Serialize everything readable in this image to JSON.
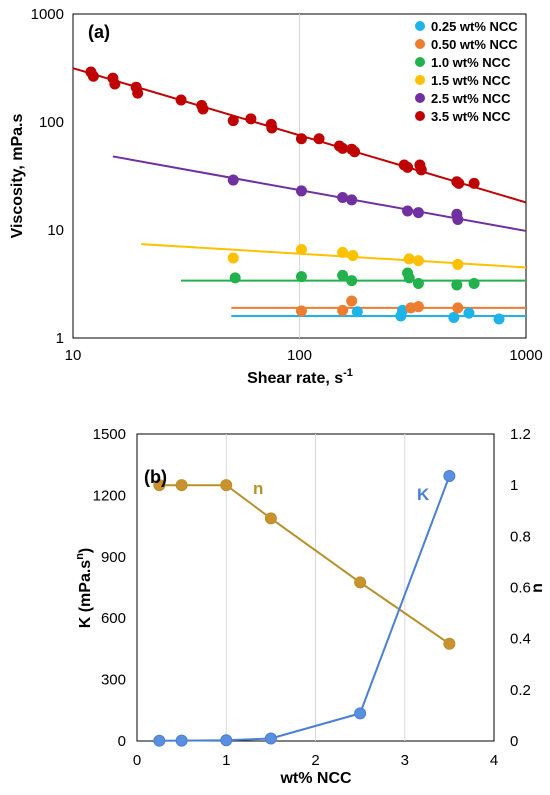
{
  "chart_data": [
    {
      "type": "scatter",
      "panel_label": "(a)",
      "xlabel": "Shear rate, s",
      "xlabel_sup": "-1",
      "ylabel": "Viscosity, mPa.s",
      "xscale": "log",
      "yscale": "log",
      "xlim": [
        10,
        1000
      ],
      "ylim": [
        1,
        1000
      ],
      "xticks": [
        "10",
        "100",
        "1000"
      ],
      "yticks": [
        "1",
        "10",
        "100",
        "1000"
      ],
      "grid": "vertical lines at decades",
      "legend_position": "top-right",
      "series": [
        {
          "name": "0.25 wt% NCC",
          "color": "#1fb4e8",
          "points": [
            [
              280,
              1.6
            ],
            [
              285,
              1.8
            ],
            [
              480,
              1.55
            ],
            [
              560,
              1.7
            ],
            [
              760,
              1.5
            ],
            [
              180,
              1.75
            ]
          ],
          "fit_line": [
            [
              50,
              1.6
            ],
            [
              1000,
              1.6
            ]
          ]
        },
        {
          "name": "0.50 wt% NCC",
          "color": "#ed7d31",
          "points": [
            [
              102,
              1.78
            ],
            [
              155,
              1.8
            ],
            [
              170,
              2.2
            ],
            [
              310,
              1.9
            ],
            [
              335,
              1.95
            ],
            [
              500,
              1.9
            ]
          ],
          "fit_line": [
            [
              50,
              1.9
            ],
            [
              1000,
              1.9
            ]
          ]
        },
        {
          "name": "1.0 wt% NCC",
          "color": "#22b14c",
          "points": [
            [
              52,
              3.6
            ],
            [
              102,
              3.7
            ],
            [
              155,
              3.8
            ],
            [
              170,
              3.4
            ],
            [
              300,
              4.0
            ],
            [
              305,
              3.6
            ],
            [
              335,
              3.2
            ],
            [
              495,
              3.1
            ],
            [
              590,
              3.2
            ]
          ],
          "fit_line": [
            [
              30,
              3.4
            ],
            [
              1000,
              3.4
            ]
          ]
        },
        {
          "name": "1.5 wt% NCC",
          "color": "#ffc000",
          "points": [
            [
              51,
              5.5
            ],
            [
              102,
              6.6
            ],
            [
              155,
              6.2
            ],
            [
              172,
              5.8
            ],
            [
              305,
              5.4
            ],
            [
              335,
              5.2
            ],
            [
              500,
              4.8
            ]
          ],
          "fit_line": [
            [
              20,
              7.4
            ],
            [
              1000,
              4.5
            ]
          ]
        },
        {
          "name": "2.5 wt% NCC",
          "color": "#7030a0",
          "points": [
            [
              51,
              29
            ],
            [
              102,
              23
            ],
            [
              155,
              20
            ],
            [
              170,
              19
            ],
            [
              300,
              15
            ],
            [
              335,
              14.5
            ],
            [
              495,
              14
            ],
            [
              500,
              12.5
            ]
          ],
          "fit_line": [
            [
              15,
              48
            ],
            [
              1000,
              9.8
            ]
          ]
        },
        {
          "name": "3.5 wt% NCC",
          "color": "#c00000",
          "points": [
            [
              12,
              290
            ],
            [
              12.3,
              265
            ],
            [
              15,
              255
            ],
            [
              15.3,
              225
            ],
            [
              19,
              210
            ],
            [
              19.3,
              185
            ],
            [
              30,
              160
            ],
            [
              37,
              142
            ],
            [
              37.5,
              132
            ],
            [
              51,
              103
            ],
            [
              61,
              107
            ],
            [
              75,
              95
            ],
            [
              75.5,
              88
            ],
            [
              102,
              70
            ],
            [
              122,
              70
            ],
            [
              150,
              60
            ],
            [
              155,
              57
            ],
            [
              170,
              56
            ],
            [
              175,
              53
            ],
            [
              290,
              40
            ],
            [
              300,
              38
            ],
            [
              340,
              40
            ],
            [
              345,
              36
            ],
            [
              495,
              28
            ],
            [
              505,
              27
            ],
            [
              590,
              27
            ]
          ],
          "fit_line": [
            [
              10,
              315
            ],
            [
              1000,
              18
            ]
          ]
        }
      ]
    },
    {
      "type": "line",
      "panel_label": "(b)",
      "xlabel": "wt% NCC",
      "ylabel_left": "K (mPa.s",
      "ylabel_left_sup": "n",
      "ylabel_left_close": ")",
      "ylabel_right": "n",
      "xlim": [
        0,
        4
      ],
      "ylim_left": [
        0,
        1500
      ],
      "ylim_right": [
        0,
        1.2
      ],
      "xticks": [
        "0",
        "1",
        "2",
        "3",
        "4"
      ],
      "yticks_left": [
        "0",
        "300",
        "600",
        "900",
        "1200",
        "1500"
      ],
      "yticks_right": [
        "0",
        "0.2",
        "0.4",
        "0.6",
        "0.8",
        "1",
        "1.2"
      ],
      "grid": "vertical lines",
      "series": [
        {
          "name": "n",
          "axis": "right",
          "color": "#b8912a",
          "marker": "#c9922e",
          "x": [
            0.25,
            0.5,
            1.0,
            1.5,
            2.5,
            3.5
          ],
          "values": [
            1.0,
            1.0,
            1.0,
            0.87,
            0.62,
            0.38
          ]
        },
        {
          "name": "K",
          "axis": "left",
          "color": "#4a7fd8",
          "marker": "#5a8fe0",
          "x": [
            0.25,
            0.5,
            1.0,
            1.5,
            2.5,
            3.5
          ],
          "values": [
            1.5,
            1.8,
            3.5,
            12,
            135,
            1295
          ]
        }
      ]
    }
  ]
}
